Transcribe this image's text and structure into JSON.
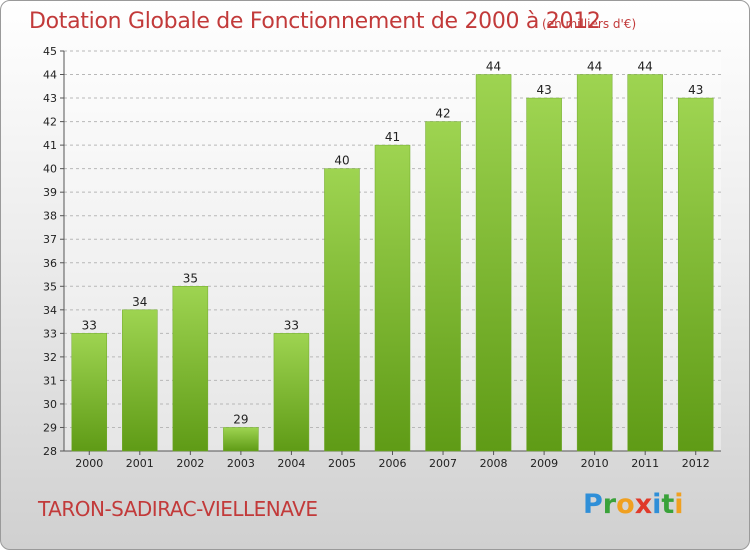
{
  "title": "Dotation Globale de Fonctionnement de 2000 à 2012",
  "unit_note": "(en milliers d'€)",
  "commune": "TARON-SADIRAC-VIELLENAVE",
  "logo": {
    "letters": [
      {
        "char": "P",
        "color": "#2f8fd8"
      },
      {
        "char": "r",
        "color": "#3aa23a"
      },
      {
        "char": "o",
        "color": "#f0a020"
      },
      {
        "char": "x",
        "color": "#e03a2a"
      },
      {
        "char": "i",
        "color": "#2f8fd8"
      },
      {
        "char": "t",
        "color": "#3aa23a"
      },
      {
        "char": "i",
        "color": "#f0a020"
      }
    ]
  },
  "colors": {
    "title": "#c23a3a",
    "bar_top": "#9ed451",
    "bar_bottom": "#5f9b16",
    "grid": "#b8b8b8",
    "axis_text": "#222222"
  },
  "chart_data": {
    "type": "bar",
    "categories": [
      "2000",
      "2001",
      "2002",
      "2003",
      "2004",
      "2005",
      "2006",
      "2007",
      "2008",
      "2009",
      "2010",
      "2011",
      "2012"
    ],
    "values": [
      33,
      34,
      35,
      29,
      33,
      40,
      41,
      42,
      44,
      43,
      44,
      44,
      43
    ],
    "ylim": [
      28,
      45
    ],
    "yticks": [
      28,
      29,
      30,
      31,
      32,
      33,
      34,
      35,
      36,
      37,
      38,
      39,
      40,
      41,
      42,
      43,
      44,
      45
    ],
    "grid": true,
    "data_labels": true
  }
}
